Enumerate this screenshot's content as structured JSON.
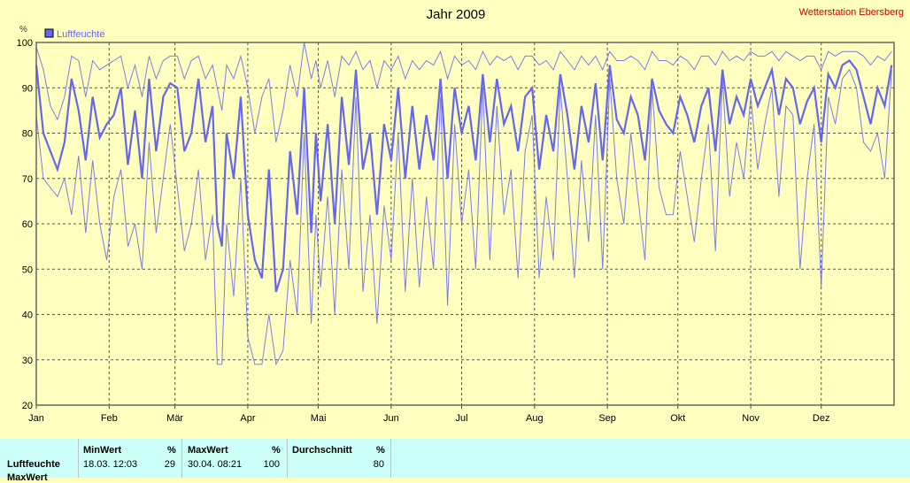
{
  "chart_data": {
    "type": "line",
    "title": "Jahr 2009",
    "station": "Wetterstation Ebersberg",
    "ylabel": "%",
    "ylim": [
      20,
      100
    ],
    "yticks": [
      20,
      30,
      40,
      50,
      60,
      70,
      80,
      90,
      100
    ],
    "xlim": [
      0,
      365
    ],
    "months": [
      "Jan",
      "Feb",
      "Mär",
      "Apr",
      "Mai",
      "Jun",
      "Jul",
      "Aug",
      "Sep",
      "Okt",
      "Nov",
      "Dez"
    ],
    "month_starts": [
      0,
      31,
      59,
      90,
      120,
      151,
      181,
      212,
      243,
      273,
      304,
      334
    ],
    "grid": true,
    "legend": "top-left",
    "series": [
      {
        "name": "Luftfeuchte",
        "color": "#6666ee",
        "x": [
          0,
          3,
          6,
          9,
          12,
          15,
          18,
          21,
          24,
          27,
          30,
          33,
          36,
          39,
          42,
          45,
          48,
          51,
          54,
          57,
          60,
          63,
          66,
          69,
          72,
          75,
          77,
          79,
          81,
          84,
          87,
          90,
          93,
          96,
          99,
          102,
          105,
          108,
          111,
          114,
          117,
          119,
          121,
          124,
          127,
          130,
          133,
          136,
          139,
          142,
          145,
          148,
          151,
          154,
          157,
          160,
          163,
          166,
          169,
          172,
          175,
          178,
          181,
          184,
          187,
          190,
          193,
          196,
          199,
          202,
          205,
          208,
          211,
          214,
          217,
          220,
          223,
          226,
          229,
          232,
          235,
          238,
          241,
          244,
          247,
          250,
          253,
          256,
          259,
          262,
          265,
          268,
          271,
          274,
          277,
          280,
          283,
          286,
          289,
          292,
          295,
          298,
          301,
          304,
          307,
          310,
          313,
          316,
          319,
          322,
          325,
          328,
          331,
          334,
          337,
          340,
          343,
          346,
          349,
          352,
          355,
          358,
          361,
          364
        ],
        "mean": [
          95,
          80,
          76,
          72,
          78,
          92,
          85,
          74,
          88,
          79,
          82,
          84,
          90,
          73,
          85,
          70,
          92,
          76,
          88,
          91,
          90,
          76,
          80,
          92,
          78,
          86,
          60,
          55,
          80,
          70,
          88,
          62,
          52,
          48,
          72,
          45,
          50,
          76,
          62,
          90,
          58,
          80,
          65,
          82,
          60,
          88,
          73,
          94,
          72,
          80,
          62,
          82,
          74,
          90,
          70,
          86,
          72,
          84,
          74,
          92,
          70,
          90,
          80,
          86,
          74,
          93,
          78,
          92,
          82,
          86,
          76,
          88,
          90,
          72,
          84,
          76,
          93,
          84,
          72,
          86,
          78,
          91,
          74,
          95,
          83,
          80,
          88,
          84,
          74,
          92,
          85,
          82,
          80,
          88,
          84,
          78,
          86,
          90,
          76,
          94,
          82,
          88,
          84,
          92,
          86,
          90,
          94,
          84,
          92,
          90,
          82,
          87,
          90,
          78,
          93,
          90,
          95,
          96,
          94,
          88,
          82,
          90,
          86,
          95
        ],
        "max": [
          99,
          94,
          86,
          83,
          88,
          97,
          96,
          88,
          96,
          94,
          95,
          96,
          97,
          90,
          95,
          88,
          97,
          92,
          96,
          97,
          97,
          92,
          96,
          97,
          92,
          95,
          90,
          85,
          95,
          92,
          97,
          90,
          80,
          88,
          92,
          78,
          85,
          95,
          88,
          100,
          92,
          96,
          90,
          96,
          88,
          97,
          95,
          98,
          94,
          96,
          90,
          96,
          94,
          97,
          92,
          96,
          94,
          96,
          95,
          98,
          92,
          97,
          95,
          96,
          94,
          98,
          95,
          97,
          96,
          97,
          94,
          97,
          97,
          95,
          96,
          94,
          98,
          96,
          94,
          97,
          95,
          97,
          94,
          98,
          96,
          96,
          97,
          96,
          94,
          98,
          96,
          96,
          95,
          97,
          96,
          94,
          97,
          97,
          95,
          98,
          96,
          97,
          96,
          98,
          97,
          97,
          98,
          96,
          98,
          97,
          96,
          97,
          97,
          94,
          98,
          97,
          98,
          98,
          98,
          97,
          95,
          97,
          96,
          98
        ],
        "min": [
          84,
          70,
          68,
          66,
          70,
          62,
          75,
          58,
          74,
          60,
          52,
          66,
          72,
          55,
          60,
          50,
          78,
          58,
          70,
          82,
          68,
          54,
          60,
          72,
          52,
          62,
          29,
          29,
          60,
          44,
          70,
          35,
          29,
          29,
          40,
          29,
          32,
          52,
          40,
          80,
          38,
          62,
          46,
          66,
          40,
          72,
          50,
          88,
          45,
          62,
          38,
          64,
          52,
          80,
          45,
          70,
          46,
          66,
          50,
          88,
          42,
          82,
          60,
          72,
          50,
          90,
          52,
          86,
          62,
          72,
          48,
          76,
          84,
          48,
          66,
          52,
          90,
          70,
          48,
          74,
          56,
          84,
          50,
          92,
          70,
          60,
          80,
          66,
          52,
          90,
          68,
          62,
          62,
          76,
          66,
          56,
          70,
          82,
          54,
          92,
          66,
          78,
          70,
          88,
          72,
          82,
          90,
          66,
          86,
          84,
          50,
          70,
          82,
          46,
          88,
          82,
          92,
          94,
          90,
          78,
          76,
          80,
          70,
          94
        ]
      }
    ]
  },
  "stats_table": {
    "headers": {
      "min": "MinWert",
      "min_unit": "%",
      "max": "MaxWert",
      "max_unit": "%",
      "avg": "Durchschnitt",
      "avg_unit": "%"
    },
    "rows": [
      {
        "label": "Luftfeuchte",
        "min_time": "18.03.  12:03",
        "min_value": "29",
        "max_time": "30.04.  08:21",
        "max_value": "100",
        "avg_value": "80"
      }
    ],
    "next_row_label": "MaxWert"
  }
}
